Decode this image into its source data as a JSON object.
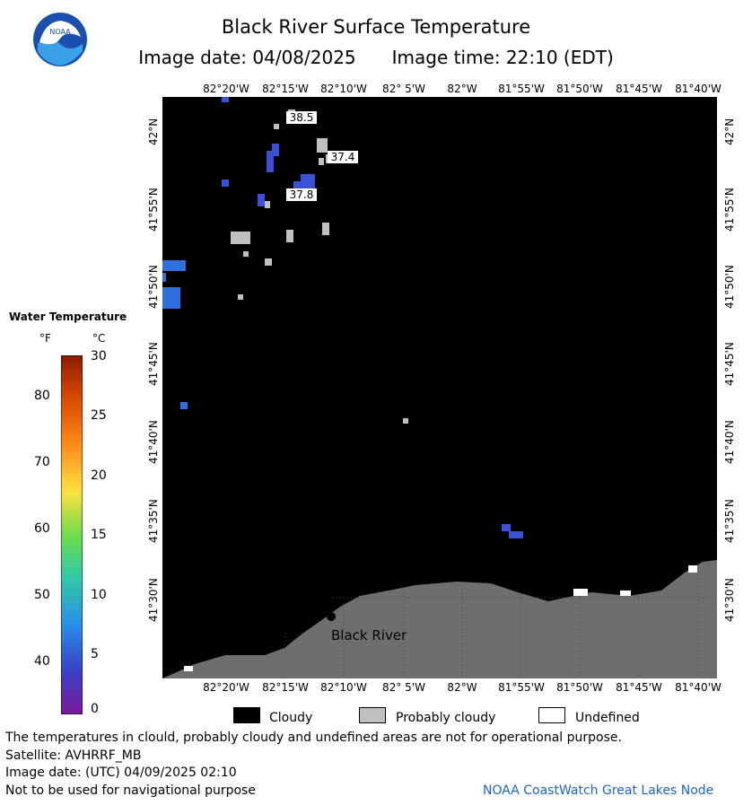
{
  "header": {
    "title": "Black River Surface Temperature",
    "image_date": "Image date: 04/08/2025",
    "image_time": "Image time: 22:10 (EDT)"
  },
  "logo": {
    "text": "NOAA",
    "icon": "noaa-logo"
  },
  "map": {
    "lon_ticks_top": [
      "82°20'W",
      "82°15'W",
      "82°10'W",
      "82° 5'W",
      "82°W",
      "81°55'W",
      "81°50'W",
      "81°45'W",
      "81°40'W"
    ],
    "lon_ticks_bottom": [
      "82°20'W",
      "82°15'W",
      "82°10'W",
      "82° 5'W",
      "82°W",
      "81°55'W",
      "81°50'W",
      "81°45'W",
      "81°40'W"
    ],
    "lat_ticks": [
      "42°N",
      "41°55'N",
      "41°50'N",
      "41°45'N",
      "41°40'N",
      "41°35'N",
      "41°30'N"
    ],
    "place_label": "Black River",
    "temp_labels": [
      {
        "text": "38.5"
      },
      {
        "text": "37.4"
      },
      {
        "text": "37.8"
      }
    ],
    "colors": {
      "cloudy": "#000000",
      "probably_cloudy": "#c0c0c0",
      "land": "#6e6e6e",
      "water_cold": "#3a52d8"
    }
  },
  "legend": {
    "title": "Water Temperature",
    "unit_f": "°F",
    "unit_c": "°C",
    "f_labels": [
      "80",
      "70",
      "60",
      "50",
      "40"
    ],
    "c_labels": [
      "30",
      "25",
      "20",
      "15",
      "10",
      "5",
      "0"
    ]
  },
  "key": {
    "cloudy": "Cloudy",
    "probably_cloudy": "Probably cloudy",
    "undefined": "Undefined"
  },
  "footer": {
    "disclaimer": "The temperatures in clould, probably cloudy and undefined areas are not for operational purpose.",
    "satellite": "Satellite: AVHRRF_MB",
    "image_date_utc": "Image date: (UTC) 04/09/2025  02:10",
    "nav_note": "Not to be used for navigational purpose",
    "credit": "NOAA CoastWatch Great Lakes Node"
  }
}
